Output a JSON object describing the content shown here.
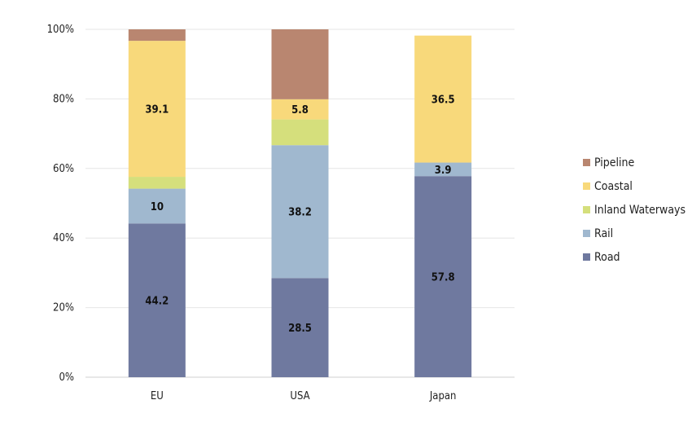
{
  "chart_data": {
    "type": "bar",
    "stacked": true,
    "percent": true,
    "categories": [
      "EU",
      "USA",
      "Japan"
    ],
    "series": [
      {
        "name": "Road",
        "color": "#6f799f",
        "values": [
          44.2,
          28.5,
          57.8
        ],
        "labels": [
          "44.2",
          "28.5",
          "57.8"
        ]
      },
      {
        "name": "Rail",
        "color": "#a0b8cf",
        "values": [
          10,
          38.2,
          3.9
        ],
        "labels": [
          "10",
          "38.2",
          "3.9"
        ]
      },
      {
        "name": "Inland Waterways",
        "color": "#d5df7c",
        "values": [
          3.4,
          7.4,
          0
        ],
        "labels": [
          "",
          "",
          ""
        ]
      },
      {
        "name": "Coastal",
        "color": "#f8d97b",
        "values": [
          39.1,
          5.8,
          36.5
        ],
        "labels": [
          "39.1",
          "5.8",
          "36.5"
        ]
      },
      {
        "name": "Pipeline",
        "color": "#b98670",
        "values": [
          3.3,
          20.1,
          0
        ],
        "labels": [
          "",
          "",
          ""
        ]
      }
    ],
    "y_ticks": [
      "0%",
      "20%",
      "40%",
      "60%",
      "80%",
      "100%"
    ],
    "ylim": [
      0,
      100
    ],
    "grid": true,
    "legend_position": "right",
    "legend_order": [
      "Pipeline",
      "Coastal",
      "Inland Waterways",
      "Rail",
      "Road"
    ],
    "title": "",
    "xlabel": "",
    "ylabel": ""
  }
}
